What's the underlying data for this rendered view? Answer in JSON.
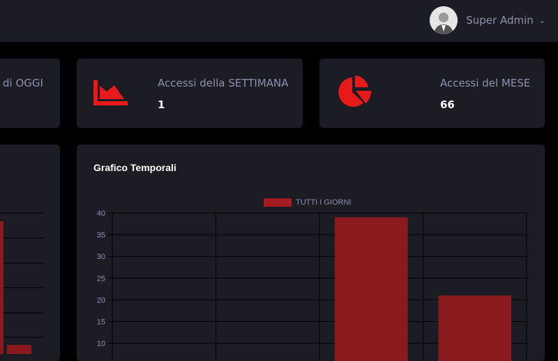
{
  "header": {
    "user_name": "Super Admin"
  },
  "stats": [
    {
      "label": "Accessi di OGGI",
      "label_visible": "di OGGI"
    },
    {
      "label": "Accessi della SETTIMANA",
      "value": "1",
      "icon": "area-chart-icon"
    },
    {
      "label": "Accessi del MESE",
      "value": "66",
      "icon": "pie-chart-icon"
    }
  ],
  "colors": {
    "accent": "#e8191b",
    "bar": "#8b1a1f",
    "panel": "#1b1c24"
  },
  "chart_title": "Grafico Temporali",
  "chart_data": [
    {
      "type": "bar",
      "title": "Grafico Temporali",
      "legend": "TUTTI I GIORNI",
      "legend_position": "top",
      "y_ticks": [
        "10",
        "15",
        "20",
        "25",
        "30",
        "35",
        "40"
      ],
      "ylim": [
        10,
        40
      ],
      "grid": true,
      "categories": [
        "",
        "",
        "",
        ""
      ],
      "values": [
        null,
        null,
        39,
        21
      ]
    },
    {
      "type": "bar",
      "note_visible": "partial",
      "values": [
        38,
        14
      ]
    }
  ]
}
